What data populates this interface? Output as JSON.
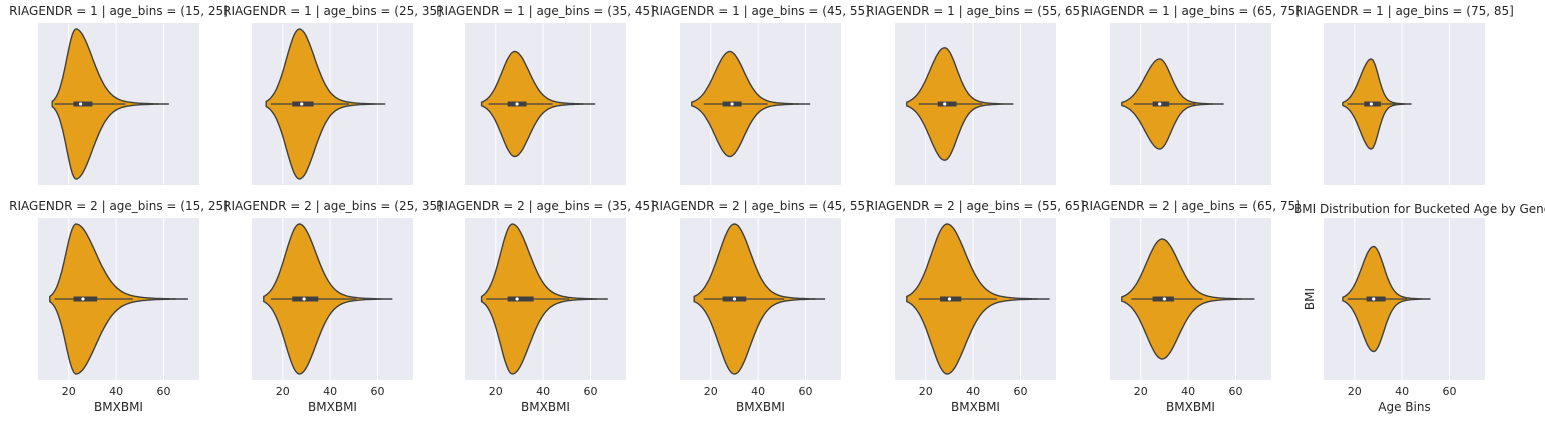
{
  "chart_data": {
    "type": "violin",
    "facet_rows": [
      "RIAGENDR = 1",
      "RIAGENDR = 2"
    ],
    "facet_cols": [
      "age_bins = (15, 25]",
      "age_bins = (25, 35]",
      "age_bins = (35, 45]",
      "age_bins = (45, 55]",
      "age_bins = (55, 65]",
      "age_bins = (65, 75]",
      "age_bins = (75, 85]"
    ],
    "xlim": [
      7,
      75
    ],
    "xticks": [
      20,
      40,
      60
    ],
    "xlabel": "BMXBMI",
    "last_xlabel": "Age Bins",
    "last_ylabel": "BMI",
    "overlay_title": "BMI Distribution for Bucketed Age by Gender",
    "grid": true,
    "colors": {
      "violin": "#e69f1a",
      "outline": "#404040",
      "panel": "#eaeaf2",
      "grid": "#ffffff"
    },
    "panels": [
      {
        "title": "RIAGENDR = 1 | age_bins = (15, 25]",
        "row": 0,
        "col": 0,
        "min": 13,
        "max": 62,
        "mode": 23,
        "q1": 22,
        "median": 25,
        "q3": 30,
        "whisker_lo": 14,
        "whisker_hi": 44,
        "width": 1.0
      },
      {
        "title": "RIAGENDR = 1 | age_bins = (25, 35]",
        "row": 0,
        "col": 1,
        "min": 13,
        "max": 63,
        "mode": 27,
        "q1": 24,
        "median": 28,
        "q3": 33,
        "whisker_lo": 15,
        "whisker_hi": 48,
        "width": 1.0
      },
      {
        "title": "RIAGENDR = 1 | age_bins = (35, 45]",
        "row": 0,
        "col": 2,
        "min": 14,
        "max": 62,
        "mode": 28,
        "q1": 25,
        "median": 29,
        "q3": 33,
        "whisker_lo": 17,
        "whisker_hi": 44,
        "width": 0.7
      },
      {
        "title": "RIAGENDR = 1 | age_bins = (45, 55]",
        "row": 0,
        "col": 3,
        "min": 12,
        "max": 62,
        "mode": 28,
        "q1": 25,
        "median": 29,
        "q3": 33,
        "whisker_lo": 17,
        "whisker_hi": 44,
        "width": 0.7
      },
      {
        "title": "RIAGENDR = 1 | age_bins = (55, 65]",
        "row": 0,
        "col": 4,
        "min": 12,
        "max": 57,
        "mode": 28,
        "q1": 25,
        "median": 28,
        "q3": 33,
        "whisker_lo": 17,
        "whisker_hi": 44,
        "width": 0.75
      },
      {
        "title": "RIAGENDR = 1 | age_bins = (65, 75]",
        "row": 0,
        "col": 5,
        "min": 12,
        "max": 55,
        "mode": 28,
        "q1": 25,
        "median": 28,
        "q3": 32,
        "whisker_lo": 17,
        "whisker_hi": 43,
        "width": 0.6
      },
      {
        "title": "RIAGENDR = 1 | age_bins = (75, 85]",
        "row": 0,
        "col": 6,
        "min": 15,
        "max": 44,
        "mode": 27,
        "q1": 24,
        "median": 27,
        "q3": 31,
        "whisker_lo": 17,
        "whisker_hi": 41,
        "width": 0.6
      },
      {
        "title": "RIAGENDR = 2 | age_bins = (15, 25]",
        "row": 1,
        "col": 0,
        "min": 12,
        "max": 70,
        "mode": 23,
        "q1": 22,
        "median": 26,
        "q3": 32,
        "whisker_lo": 14,
        "whisker_hi": 47,
        "width": 1.0
      },
      {
        "title": "RIAGENDR = 2 | age_bins = (25, 35]",
        "row": 1,
        "col": 1,
        "min": 12,
        "max": 66,
        "mode": 27,
        "q1": 24,
        "median": 29,
        "q3": 35,
        "whisker_lo": 15,
        "whisker_hi": 51,
        "width": 1.0
      },
      {
        "title": "RIAGENDR = 2 | age_bins = (35, 45]",
        "row": 1,
        "col": 2,
        "min": 14,
        "max": 67,
        "mode": 27,
        "q1": 25,
        "median": 29,
        "q3": 36,
        "whisker_lo": 16,
        "whisker_hi": 51,
        "width": 1.0
      },
      {
        "title": "RIAGENDR = 2 | age_bins = (45, 55]",
        "row": 1,
        "col": 3,
        "min": 13,
        "max": 68,
        "mode": 30,
        "q1": 25,
        "median": 30,
        "q3": 35,
        "whisker_lo": 17,
        "whisker_hi": 51,
        "width": 1.0
      },
      {
        "title": "RIAGENDR = 2 | age_bins = (55, 65]",
        "row": 1,
        "col": 4,
        "min": 12,
        "max": 72,
        "mode": 29,
        "q1": 26,
        "median": 30,
        "q3": 35,
        "whisker_lo": 17,
        "whisker_hi": 50,
        "width": 1.0
      },
      {
        "title": "RIAGENDR = 2 | age_bins = (65, 75]",
        "row": 1,
        "col": 5,
        "min": 12,
        "max": 68,
        "mode": 29,
        "q1": 25,
        "median": 30,
        "q3": 34,
        "whisker_lo": 16,
        "whisker_hi": 46,
        "width": 0.8
      },
      {
        "title": "",
        "row": 1,
        "col": 6,
        "min": 15,
        "max": 52,
        "mode": 28,
        "q1": 25,
        "median": 28,
        "q3": 33,
        "whisker_lo": 17,
        "whisker_hi": 42,
        "width": 0.7
      }
    ]
  }
}
